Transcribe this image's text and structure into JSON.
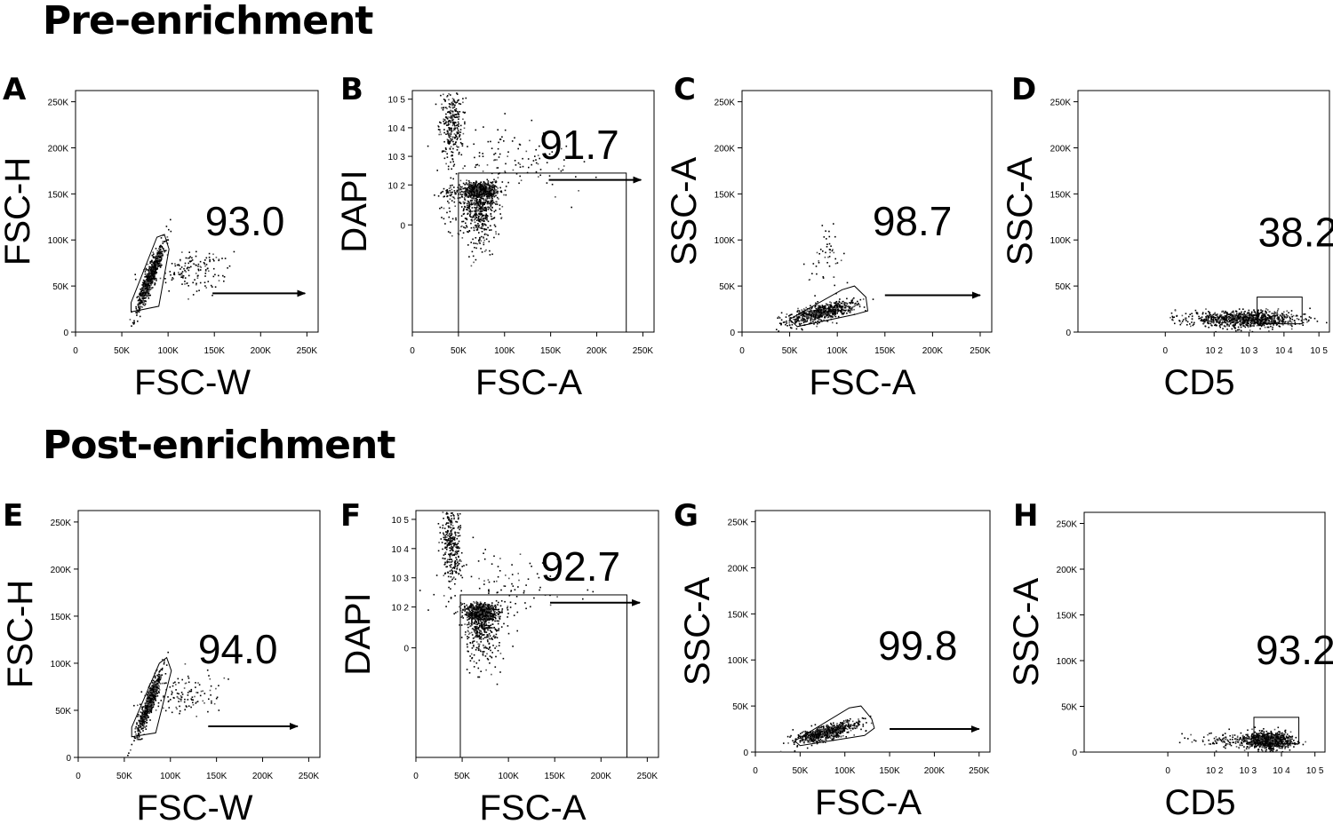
{
  "sections": {
    "pre_title": "Pre-enrichment",
    "post_title": "Post-enrichment"
  },
  "chart_data": [
    {
      "panel": "A",
      "group": "Pre-enrichment",
      "type": "scatter",
      "xlabel": "FSC-W",
      "ylabel": "FSC-H",
      "xscale": "linear",
      "yscale": "linear",
      "xlim": [
        0,
        262144
      ],
      "ylim": [
        0,
        262144
      ],
      "xticks": [
        "0",
        "50K",
        "100K",
        "150K",
        "200K",
        "250K"
      ],
      "yticks": [
        "0",
        "50K",
        "100K",
        "150K",
        "200K",
        "250K"
      ],
      "xtick_values": [
        0,
        50000,
        100000,
        150000,
        200000,
        250000
      ],
      "ytick_values": [
        0,
        50000,
        100000,
        150000,
        200000,
        250000
      ],
      "gate": {
        "shape": "polygon",
        "points": [
          [
            60000,
            22000
          ],
          [
            90000,
            28000
          ],
          [
            101000,
            90000
          ],
          [
            96000,
            106000
          ],
          [
            88000,
            103000
          ],
          [
            60000,
            32000
          ]
        ]
      },
      "clusters": [
        {
          "cx": 80000,
          "cy": 60000,
          "sx": 7000,
          "sy": 18000,
          "rho": 0.92,
          "n": 700
        },
        {
          "cx": 125000,
          "cy": 68000,
          "sx": 22000,
          "sy": 12000,
          "rho": 0.2,
          "n": 150
        }
      ],
      "percent": "93.0",
      "label_pos": [
        140000,
        105000
      ],
      "arrow": [
        [
          148000,
          42000
        ],
        [
          248000,
          42000
        ]
      ]
    },
    {
      "panel": "B",
      "group": "Pre-enrichment",
      "type": "scatter",
      "xlabel": "FSC-A",
      "ylabel": "DAPI",
      "xscale": "linear",
      "yscale": "biex",
      "xlim": [
        0,
        262144
      ],
      "ylim": [
        -150,
        200000
      ],
      "xticks": [
        "0",
        "50K",
        "100K",
        "150K",
        "200K",
        "250K"
      ],
      "yticks": [
        "0",
        "10 2",
        "10 3",
        "10 4",
        "10 5"
      ],
      "xtick_values": [
        0,
        50000,
        100000,
        150000,
        200000,
        250000
      ],
      "ytick_values": [
        0,
        100,
        1000,
        10000,
        100000
      ],
      "gate": {
        "shape": "rect",
        "x0": 50000,
        "x1": 232000,
        "y0": -150,
        "y1": 260
      },
      "clusters": [
        {
          "cx": 72000,
          "cy": 50,
          "sx": 10000,
          "sy": 35,
          "rho": 0.0,
          "n": 1100,
          "ylog": false
        },
        {
          "cx": 38000,
          "cy": 40,
          "sx": 6000,
          "sy": 20,
          "rho": 0.0,
          "n": 60,
          "ylog": false
        },
        {
          "cx": 42000,
          "cy": 4.2,
          "sx": 6000,
          "sy": 0.7,
          "rho": 0.0,
          "n": 300,
          "ylog": true
        },
        {
          "cx": 100000,
          "cy": 2.8,
          "sx": 40000,
          "sy": 0.6,
          "rho": 0.0,
          "n": 120,
          "ylog": true
        }
      ],
      "percent": "91.7",
      "label_pos": [
        138000,
        800
      ],
      "arrow": [
        [
          148000,
          150
        ],
        [
          248000,
          150
        ]
      ]
    },
    {
      "panel": "C",
      "group": "Pre-enrichment",
      "type": "scatter",
      "xlabel": "FSC-A",
      "ylabel": "SSC-A",
      "xscale": "linear",
      "yscale": "linear",
      "xlim": [
        0,
        262144
      ],
      "ylim": [
        0,
        262144
      ],
      "xticks": [
        "0",
        "50K",
        "100K",
        "150K",
        "200K",
        "250K"
      ],
      "yticks": [
        "0",
        "50K",
        "100K",
        "150K",
        "200K",
        "250K"
      ],
      "xtick_values": [
        0,
        50000,
        100000,
        150000,
        200000,
        250000
      ],
      "ytick_values": [
        0,
        50000,
        100000,
        150000,
        200000,
        250000
      ],
      "gate": {
        "shape": "polygon",
        "points": [
          [
            50000,
            14000
          ],
          [
            58000,
            6000
          ],
          [
            118000,
            19000
          ],
          [
            132000,
            23000
          ],
          [
            130000,
            38000
          ],
          [
            118000,
            50000
          ],
          [
            105000,
            46000
          ]
        ]
      },
      "clusters": [
        {
          "cx": 82000,
          "cy": 22000,
          "sx": 18000,
          "sy": 6000,
          "rho": 0.7,
          "n": 650
        },
        {
          "cx": 85000,
          "cy": 85000,
          "sx": 9000,
          "sy": 22000,
          "rho": 0.0,
          "n": 50
        }
      ],
      "percent": "98.7",
      "label_pos": [
        137000,
        105000
      ],
      "arrow": [
        [
          150000,
          40000
        ],
        [
          250000,
          40000
        ]
      ]
    },
    {
      "panel": "D",
      "group": "Pre-enrichment",
      "type": "scatter",
      "xlabel": "CD5",
      "ylabel": "SSC-A",
      "xscale": "biex",
      "yscale": "linear",
      "xlim": [
        -100,
        200000
      ],
      "ylim": [
        0,
        262144
      ],
      "xticks": [
        "0",
        "10 2",
        "10 3",
        "10 4",
        "10 5"
      ],
      "yticks": [
        "0",
        "50K",
        "100K",
        "150K",
        "200K",
        "250K"
      ],
      "xtick_values": [
        0,
        100,
        1000,
        10000,
        100000
      ],
      "ytick_values": [
        0,
        50000,
        100000,
        150000,
        200000,
        250000
      ],
      "gate": {
        "shape": "rect",
        "x0": 1700,
        "x1": 33000,
        "y0": 9000,
        "y1": 38000
      },
      "clusters": [
        {
          "cx": 2.9,
          "cy": 15000,
          "sx": 0.75,
          "sy": 4500,
          "rho": 0.0,
          "n": 1000,
          "xlog": true
        }
      ],
      "percent": "38.2",
      "label_pos": [
        1800,
        93000
      ],
      "arrow": null
    },
    {
      "panel": "E",
      "group": "Post-enrichment",
      "type": "scatter",
      "xlabel": "FSC-W",
      "ylabel": "FSC-H",
      "xscale": "linear",
      "yscale": "linear",
      "xlim": [
        0,
        262144
      ],
      "ylim": [
        0,
        262144
      ],
      "xticks": [
        "0",
        "50K",
        "100K",
        "150K",
        "200K",
        "250K"
      ],
      "yticks": [
        "0",
        "50K",
        "100K",
        "150K",
        "200K",
        "250K"
      ],
      "xtick_values": [
        0,
        50000,
        100000,
        150000,
        200000,
        250000
      ],
      "ytick_values": [
        0,
        50000,
        100000,
        150000,
        200000,
        250000
      ],
      "gate": {
        "shape": "polygon",
        "points": [
          [
            58000,
            22000
          ],
          [
            84000,
            26000
          ],
          [
            101000,
            92000
          ],
          [
            96000,
            106000
          ],
          [
            88000,
            100000
          ],
          [
            58000,
            32000
          ]
        ]
      },
      "clusters": [
        {
          "cx": 76000,
          "cy": 58000,
          "sx": 7000,
          "sy": 18000,
          "rho": 0.92,
          "n": 650
        },
        {
          "cx": 115000,
          "cy": 67000,
          "sx": 20000,
          "sy": 12000,
          "rho": 0.2,
          "n": 120
        }
      ],
      "percent": "94.0",
      "label_pos": [
        130000,
        100000
      ],
      "arrow": [
        [
          141000,
          33000
        ],
        [
          238000,
          33000
        ]
      ]
    },
    {
      "panel": "F",
      "group": "Post-enrichment",
      "type": "scatter",
      "xlabel": "FSC-A",
      "ylabel": "DAPI",
      "xscale": "linear",
      "yscale": "biex",
      "xlim": [
        0,
        262144
      ],
      "ylim": [
        -150,
        200000
      ],
      "xticks": [
        "0",
        "50K",
        "100K",
        "150K",
        "200K",
        "250K"
      ],
      "yticks": [
        "0",
        "10 2",
        "10 3",
        "10 4",
        "10 5"
      ],
      "xtick_values": [
        0,
        50000,
        100000,
        150000,
        200000,
        250000
      ],
      "ytick_values": [
        0,
        100,
        1000,
        10000,
        100000
      ],
      "gate": {
        "shape": "rect",
        "x0": 48000,
        "x1": 228000,
        "y0": -150,
        "y1": 260
      },
      "clusters": [
        {
          "cx": 70000,
          "cy": 60,
          "sx": 9000,
          "sy": 35,
          "rho": 0.0,
          "n": 1000,
          "ylog": false
        },
        {
          "cx": 38000,
          "cy": 4.2,
          "sx": 5000,
          "sy": 0.7,
          "rho": 0.0,
          "n": 320,
          "ylog": true
        },
        {
          "cx": 90000,
          "cy": 2.8,
          "sx": 35000,
          "sy": 0.6,
          "rho": 0.0,
          "n": 100,
          "ylog": true
        }
      ],
      "percent": "92.7",
      "label_pos": [
        135000,
        800
      ],
      "arrow": [
        [
          145000,
          140
        ],
        [
          242000,
          140
        ]
      ]
    },
    {
      "panel": "G",
      "group": "Post-enrichment",
      "type": "scatter",
      "xlabel": "FSC-A",
      "ylabel": "SSC-A",
      "xscale": "linear",
      "yscale": "linear",
      "xlim": [
        0,
        262144
      ],
      "ylim": [
        0,
        262144
      ],
      "xticks": [
        "0",
        "50K",
        "100K",
        "150K",
        "200K",
        "250K"
      ],
      "yticks": [
        "0",
        "50K",
        "100K",
        "150K",
        "200K",
        "250K"
      ],
      "xtick_values": [
        0,
        50000,
        100000,
        150000,
        200000,
        250000
      ],
      "ytick_values": [
        0,
        50000,
        100000,
        150000,
        200000,
        250000
      ],
      "gate": {
        "shape": "polygon",
        "points": [
          [
            44000,
            12000
          ],
          [
            50000,
            7000
          ],
          [
            122000,
            18000
          ],
          [
            133000,
            26000
          ],
          [
            130000,
            36000
          ],
          [
            118000,
            50000
          ],
          [
            105000,
            48000
          ]
        ]
      },
      "clusters": [
        {
          "cx": 80000,
          "cy": 22000,
          "sx": 18000,
          "sy": 6000,
          "rho": 0.75,
          "n": 650
        }
      ],
      "percent": "99.8",
      "label_pos": [
        137000,
        100000
      ],
      "arrow": [
        [
          150000,
          25000
        ],
        [
          250000,
          25000
        ]
      ]
    },
    {
      "panel": "H",
      "group": "Post-enrichment",
      "type": "scatter",
      "xlabel": "CD5",
      "ylabel": "SSC-A",
      "xscale": "biex",
      "yscale": "linear",
      "xlim": [
        -100,
        200000
      ],
      "ylim": [
        0,
        262144
      ],
      "xticks": [
        "0",
        "10 2",
        "10 3",
        "10 4",
        "10 5"
      ],
      "yticks": [
        "0",
        "50K",
        "100K",
        "150K",
        "200K",
        "250K"
      ],
      "xtick_values": [
        0,
        100,
        1000,
        10000,
        100000
      ],
      "ytick_values": [
        0,
        50000,
        100000,
        150000,
        200000,
        250000
      ],
      "gate": {
        "shape": "rect",
        "x0": 1500,
        "x1": 33000,
        "y0": 9000,
        "y1": 38000
      },
      "clusters": [
        {
          "cx": 3.6,
          "cy": 13000,
          "sx": 0.35,
          "sy": 4500,
          "rho": 0.0,
          "n": 900,
          "xlog": true
        },
        {
          "cx": 2.4,
          "cy": 14000,
          "sx": 0.5,
          "sy": 4000,
          "rho": 0.0,
          "n": 100,
          "xlog": true
        }
      ],
      "percent": "93.2",
      "label_pos": [
        1700,
        96000
      ],
      "arrow": null
    }
  ]
}
